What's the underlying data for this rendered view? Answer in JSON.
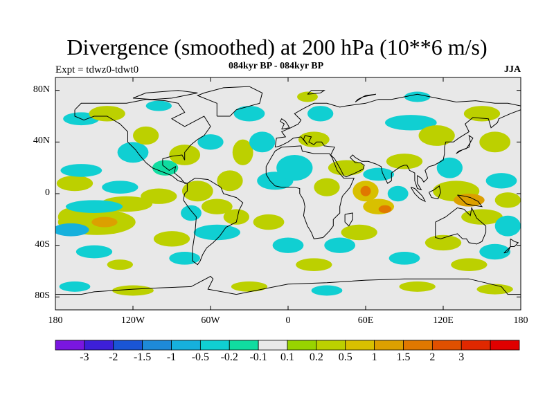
{
  "title": "Divergence (smoothed) at 200 hPa (10**6 m/s)",
  "subtitle": "084kyr BP - 084kyr BP",
  "experiment": "Expt = tdwz0-tdwt0",
  "season": "JJA",
  "map": {
    "projection": "cylindrical equidistant",
    "background_color": "#e8e8e8",
    "coastline_color": "#000000",
    "lat_range": [
      -90,
      90
    ],
    "lon_range": [
      -180,
      180
    ],
    "y_ticks": [
      {
        "value": 80,
        "label": "80N"
      },
      {
        "value": 40,
        "label": "40N"
      },
      {
        "value": 0,
        "label": "0"
      },
      {
        "value": -40,
        "label": "40S"
      },
      {
        "value": -80,
        "label": "80S"
      }
    ],
    "x_ticks": [
      {
        "value": -180,
        "label": "180"
      },
      {
        "value": -120,
        "label": "120W"
      },
      {
        "value": -60,
        "label": "60W"
      },
      {
        "value": 0,
        "label": "0"
      },
      {
        "value": 60,
        "label": "60E"
      },
      {
        "value": 120,
        "label": "120E"
      },
      {
        "value": 180,
        "label": "180"
      }
    ]
  },
  "colorbar": {
    "colors": [
      "#7a16e0",
      "#3d1fd8",
      "#1a55d6",
      "#1e8ad8",
      "#16b0dc",
      "#10cfd2",
      "#10dca0",
      "#e8e8e8",
      "#98d400",
      "#bcd000",
      "#d8c000",
      "#dca000",
      "#e07800",
      "#e05000",
      "#e02800",
      "#e00000"
    ],
    "labels": [
      "-3",
      "-2",
      "-1.5",
      "-1",
      "-0.5",
      "-0.2",
      "-0.1",
      "0.1",
      "0.2",
      "0.5",
      "1",
      "1.5",
      "2",
      "3"
    ]
  },
  "field_blobs": [
    {
      "lon": -168,
      "lat": -18,
      "rx": 10,
      "ry": 7,
      "level": 9
    },
    {
      "lon": -148,
      "lat": -22,
      "rx": 30,
      "ry": 10,
      "level": 9
    },
    {
      "lon": -142,
      "lat": -22,
      "rx": 10,
      "ry": 4,
      "level": 11
    },
    {
      "lon": -125,
      "lat": -8,
      "rx": 20,
      "ry": 6,
      "level": 9
    },
    {
      "lon": -165,
      "lat": 8,
      "rx": 14,
      "ry": 6,
      "level": 9
    },
    {
      "lon": -150,
      "lat": -10,
      "rx": 22,
      "ry": 5,
      "level": 5
    },
    {
      "lon": -168,
      "lat": -28,
      "rx": 14,
      "ry": 5,
      "level": 4
    },
    {
      "lon": -160,
      "lat": 18,
      "rx": 16,
      "ry": 5,
      "level": 5
    },
    {
      "lon": -130,
      "lat": 5,
      "rx": 14,
      "ry": 5,
      "level": 5
    },
    {
      "lon": -120,
      "lat": 32,
      "rx": 12,
      "ry": 8,
      "level": 5
    },
    {
      "lon": -160,
      "lat": 58,
      "rx": 14,
      "ry": 5,
      "level": 5
    },
    {
      "lon": -140,
      "lat": 62,
      "rx": 14,
      "ry": 6,
      "level": 9
    },
    {
      "lon": -110,
      "lat": 45,
      "rx": 10,
      "ry": 7,
      "level": 9
    },
    {
      "lon": -100,
      "lat": -2,
      "rx": 14,
      "ry": 6,
      "level": 9
    },
    {
      "lon": -95,
      "lat": 20,
      "rx": 10,
      "ry": 6,
      "level": 6
    },
    {
      "lon": -80,
      "lat": 30,
      "rx": 12,
      "ry": 8,
      "level": 9
    },
    {
      "lon": -60,
      "lat": 40,
      "rx": 10,
      "ry": 6,
      "level": 5
    },
    {
      "lon": -70,
      "lat": 2,
      "rx": 12,
      "ry": 8,
      "level": 9
    },
    {
      "lon": -55,
      "lat": -10,
      "rx": 12,
      "ry": 6,
      "level": 9
    },
    {
      "lon": -75,
      "lat": -15,
      "rx": 8,
      "ry": 6,
      "level": 5
    },
    {
      "lon": -55,
      "lat": -30,
      "rx": 18,
      "ry": 6,
      "level": 5
    },
    {
      "lon": -40,
      "lat": -18,
      "rx": 10,
      "ry": 6,
      "level": 9
    },
    {
      "lon": -90,
      "lat": -35,
      "rx": 14,
      "ry": 6,
      "level": 9
    },
    {
      "lon": -45,
      "lat": 10,
      "rx": 10,
      "ry": 8,
      "level": 9
    },
    {
      "lon": -35,
      "lat": 32,
      "rx": 8,
      "ry": 10,
      "level": 9
    },
    {
      "lon": -20,
      "lat": 40,
      "rx": 10,
      "ry": 8,
      "level": 5
    },
    {
      "lon": -10,
      "lat": 10,
      "rx": 14,
      "ry": 7,
      "level": 5
    },
    {
      "lon": 5,
      "lat": 20,
      "rx": 14,
      "ry": 10,
      "level": 5
    },
    {
      "lon": -15,
      "lat": -22,
      "rx": 12,
      "ry": 6,
      "level": 9
    },
    {
      "lon": 0,
      "lat": -40,
      "rx": 12,
      "ry": 6,
      "level": 5
    },
    {
      "lon": -30,
      "lat": 62,
      "rx": 12,
      "ry": 6,
      "level": 5
    },
    {
      "lon": 25,
      "lat": 62,
      "rx": 10,
      "ry": 6,
      "level": 5
    },
    {
      "lon": 20,
      "lat": 42,
      "rx": 12,
      "ry": 6,
      "level": 9
    },
    {
      "lon": 30,
      "lat": 5,
      "rx": 10,
      "ry": 7,
      "level": 9
    },
    {
      "lon": 45,
      "lat": 20,
      "rx": 14,
      "ry": 6,
      "level": 9
    },
    {
      "lon": 60,
      "lat": 2,
      "rx": 10,
      "ry": 8,
      "level": 10
    },
    {
      "lon": 60,
      "lat": 2,
      "rx": 4,
      "ry": 4,
      "level": 12
    },
    {
      "lon": 70,
      "lat": -10,
      "rx": 12,
      "ry": 6,
      "level": 10
    },
    {
      "lon": 75,
      "lat": -12,
      "rx": 5,
      "ry": 3,
      "level": 12
    },
    {
      "lon": 55,
      "lat": -30,
      "rx": 14,
      "ry": 6,
      "level": 9
    },
    {
      "lon": 40,
      "lat": -40,
      "rx": 12,
      "ry": 6,
      "level": 5
    },
    {
      "lon": 70,
      "lat": 15,
      "rx": 12,
      "ry": 5,
      "level": 5
    },
    {
      "lon": 90,
      "lat": 25,
      "rx": 14,
      "ry": 6,
      "level": 9
    },
    {
      "lon": 95,
      "lat": 55,
      "rx": 20,
      "ry": 6,
      "level": 5
    },
    {
      "lon": 85,
      "lat": 0,
      "rx": 8,
      "ry": 6,
      "level": 5
    },
    {
      "lon": 115,
      "lat": 45,
      "rx": 14,
      "ry": 8,
      "level": 9
    },
    {
      "lon": 125,
      "lat": 20,
      "rx": 10,
      "ry": 8,
      "level": 5
    },
    {
      "lon": 130,
      "lat": 2,
      "rx": 18,
      "ry": 8,
      "level": 9
    },
    {
      "lon": 140,
      "lat": -5,
      "rx": 12,
      "ry": 5,
      "level": 11
    },
    {
      "lon": 150,
      "lat": -18,
      "rx": 16,
      "ry": 6,
      "level": 9
    },
    {
      "lon": 170,
      "lat": -5,
      "rx": 10,
      "ry": 6,
      "level": 9
    },
    {
      "lon": 165,
      "lat": 10,
      "rx": 12,
      "ry": 6,
      "level": 5
    },
    {
      "lon": 160,
      "lat": 40,
      "rx": 12,
      "ry": 8,
      "level": 9
    },
    {
      "lon": 150,
      "lat": 62,
      "rx": 14,
      "ry": 6,
      "level": 9
    },
    {
      "lon": 170,
      "lat": -25,
      "rx": 10,
      "ry": 8,
      "level": 5
    },
    {
      "lon": 120,
      "lat": -38,
      "rx": 14,
      "ry": 6,
      "level": 9
    },
    {
      "lon": 160,
      "lat": -45,
      "rx": 12,
      "ry": 6,
      "level": 5
    },
    {
      "lon": -150,
      "lat": -45,
      "rx": 14,
      "ry": 5,
      "level": 5
    },
    {
      "lon": -130,
      "lat": -55,
      "rx": 10,
      "ry": 4,
      "level": 9
    },
    {
      "lon": -80,
      "lat": -50,
      "rx": 12,
      "ry": 5,
      "level": 5
    },
    {
      "lon": 20,
      "lat": -55,
      "rx": 14,
      "ry": 5,
      "level": 9
    },
    {
      "lon": 90,
      "lat": -50,
      "rx": 12,
      "ry": 5,
      "level": 5
    },
    {
      "lon": 140,
      "lat": -55,
      "rx": 14,
      "ry": 5,
      "level": 9
    },
    {
      "lon": -165,
      "lat": -72,
      "rx": 12,
      "ry": 4,
      "level": 5
    },
    {
      "lon": -120,
      "lat": -75,
      "rx": 16,
      "ry": 4,
      "level": 9
    },
    {
      "lon": -30,
      "lat": -72,
      "rx": 14,
      "ry": 4,
      "level": 9
    },
    {
      "lon": 30,
      "lat": -75,
      "rx": 12,
      "ry": 4,
      "level": 5
    },
    {
      "lon": 100,
      "lat": -72,
      "rx": 14,
      "ry": 4,
      "level": 9
    },
    {
      "lon": 160,
      "lat": -74,
      "rx": 14,
      "ry": 4,
      "level": 9
    },
    {
      "lon": 15,
      "lat": 75,
      "rx": 8,
      "ry": 4,
      "level": 9
    },
    {
      "lon": 100,
      "lat": 75,
      "rx": 10,
      "ry": 4,
      "level": 5
    },
    {
      "lon": -100,
      "lat": 68,
      "rx": 10,
      "ry": 4,
      "level": 5
    }
  ]
}
